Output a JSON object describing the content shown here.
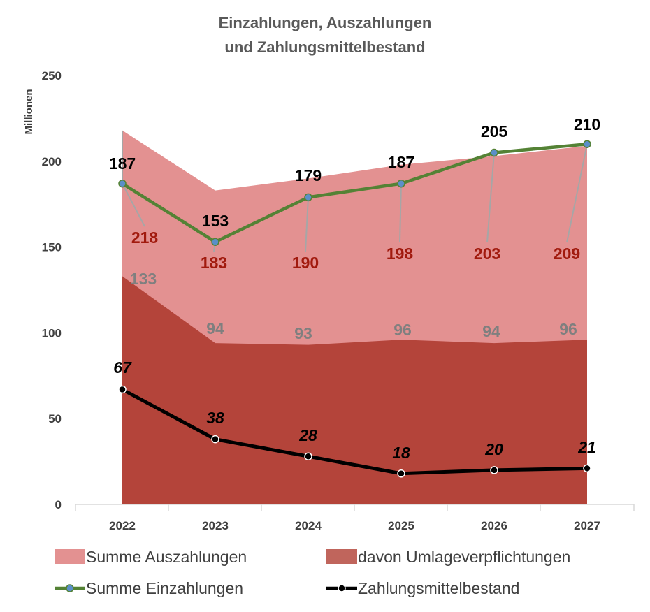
{
  "chart_data": {
    "type": "area",
    "title_line1": "Einzahlungen, Auszahlungen",
    "title_line2": "und Zahlungsmittelbestand",
    "ylabel": "Millionen",
    "xlabel": "",
    "categories": [
      "2022",
      "2023",
      "2024",
      "2025",
      "2026",
      "2027"
    ],
    "ylim": [
      0,
      250
    ],
    "yticks": [
      0,
      50,
      100,
      150,
      200,
      250
    ],
    "series": [
      {
        "name": "Summe Auszahlungen",
        "kind": "area",
        "color": "#e39191",
        "values": [
          218,
          183,
          190,
          198,
          203,
          209
        ]
      },
      {
        "name": "davon Umlageverpflichtungen",
        "kind": "area",
        "color": "#b4443a",
        "values": [
          133,
          94,
          93,
          96,
          94,
          96
        ]
      },
      {
        "name": "Summe Einzahlungen",
        "kind": "line",
        "color": "#548235",
        "marker_color": "#5b8fc9",
        "values": [
          187,
          153,
          179,
          187,
          205,
          210
        ]
      },
      {
        "name": "Zahlungsmittelbestand",
        "kind": "line",
        "color": "#000000",
        "marker_color": "#000000",
        "values": [
          67,
          38,
          28,
          18,
          20,
          21
        ]
      }
    ],
    "legend": [
      {
        "name": "Summe Auszahlungen",
        "symbol": "area",
        "color": "#e39191"
      },
      {
        "name": "davon Umlageverpflichtungen",
        "symbol": "area",
        "color": "#c0655c"
      },
      {
        "name": "Summe Einzahlungen",
        "symbol": "line",
        "color": "#548235"
      },
      {
        "name": "Zahlungsmittelbestand",
        "symbol": "line",
        "color": "#000000"
      }
    ]
  }
}
